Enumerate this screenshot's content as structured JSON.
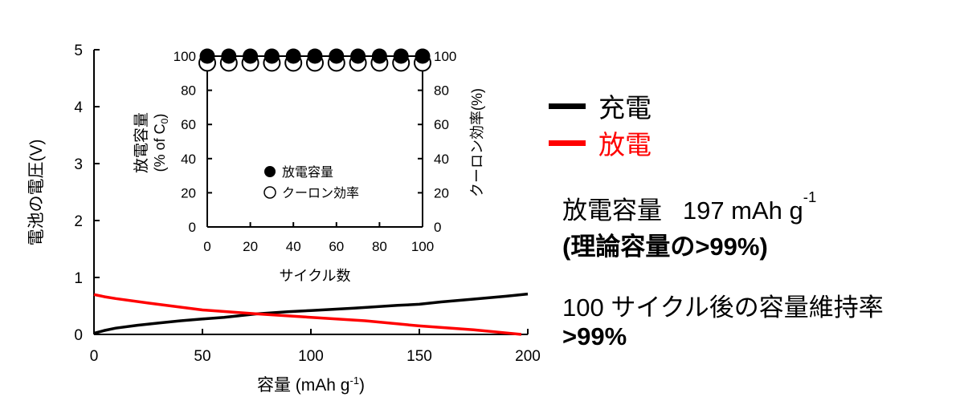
{
  "chart_data": [
    {
      "type": "line",
      "xlabel": "容量 (mAh g",
      "xlabel_sup": "-1",
      "xlabel_close": ")",
      "ylabel": "電池の電圧(V)",
      "xlim": [
        0,
        200
      ],
      "ylim": [
        0,
        5
      ],
      "xticks": [
        "0",
        "50",
        "100",
        "150",
        "200"
      ],
      "yticks": [
        "0",
        "1",
        "2",
        "3",
        "4",
        "5"
      ],
      "series": [
        {
          "name": "充電",
          "color": "#000000",
          "x": [
            0,
            5,
            10,
            20,
            30,
            40,
            50,
            60,
            75,
            90,
            100,
            120,
            140,
            150,
            160,
            175,
            190,
            200
          ],
          "y": [
            0.02,
            0.07,
            0.11,
            0.16,
            0.2,
            0.24,
            0.27,
            0.3,
            0.36,
            0.4,
            0.42,
            0.46,
            0.51,
            0.53,
            0.57,
            0.62,
            0.67,
            0.71
          ]
        },
        {
          "name": "放電",
          "color": "#ff0000",
          "x": [
            0,
            5,
            10,
            25,
            50,
            75,
            100,
            125,
            150,
            175,
            197
          ],
          "y": [
            0.7,
            0.66,
            0.63,
            0.55,
            0.43,
            0.36,
            0.3,
            0.24,
            0.15,
            0.08,
            0.0
          ]
        }
      ],
      "legend": {
        "position": "right",
        "entries": [
          "充電",
          "放電"
        ]
      }
    },
    {
      "type": "scatter",
      "xlabel": "サイクル数",
      "ylabel_left": [
        "放電容量",
        "(% of C",
        "0",
        ")"
      ],
      "ylabel_right": "クーロン効率(%)",
      "xlim": [
        0,
        100
      ],
      "ylim": [
        0,
        100
      ],
      "xticks": [
        "0",
        "20",
        "40",
        "60",
        "80",
        "100"
      ],
      "yticks": [
        "0",
        "20",
        "40",
        "60",
        "80",
        "100"
      ],
      "series": [
        {
          "name": "放電容量",
          "marker": "filled-circle",
          "x": [
            0,
            10,
            20,
            30,
            40,
            50,
            60,
            70,
            80,
            90,
            100
          ],
          "y": [
            100,
            100,
            100,
            100,
            100,
            100,
            100,
            100,
            100,
            100,
            100
          ]
        },
        {
          "name": "クーロン効率",
          "marker": "open-circle",
          "x": [
            0,
            10,
            20,
            30,
            40,
            50,
            60,
            70,
            80,
            90,
            100
          ],
          "y": [
            97,
            97,
            97,
            97,
            97,
            97,
            97,
            97,
            97,
            97,
            97
          ]
        }
      ],
      "legend": {
        "position": "center",
        "entries": [
          "放電容量",
          "クーロン効率"
        ]
      }
    }
  ],
  "annotations": {
    "capacity_label": "放電容量",
    "capacity_value": "197 mAh g",
    "capacity_sup": "-1",
    "theoretical": "(理論容量の>99%)",
    "retention_label": "100 サイクル後の容量維持率",
    "retention_value": ">99%"
  }
}
